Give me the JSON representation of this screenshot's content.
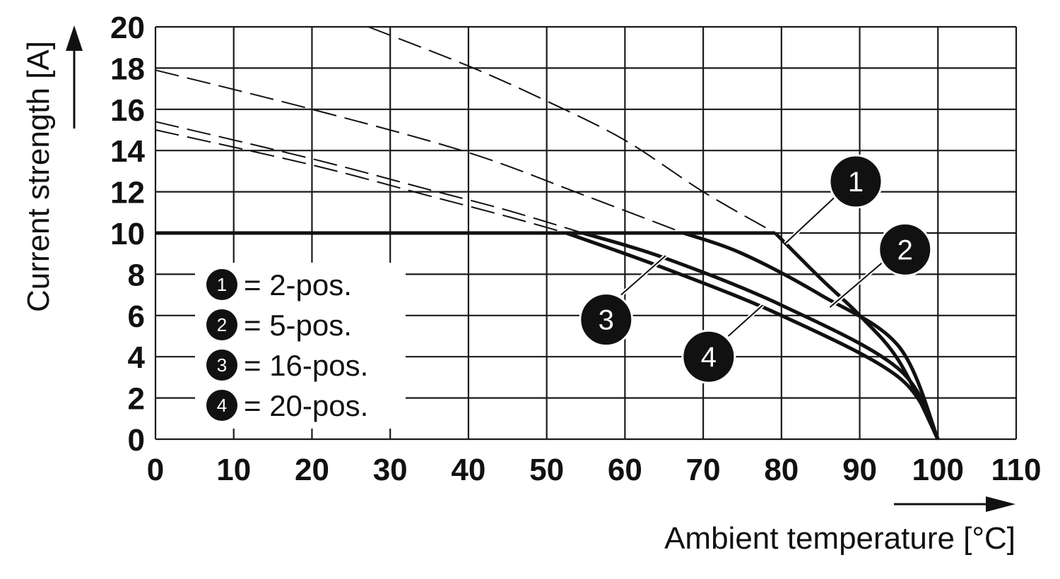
{
  "chart_data": {
    "type": "line",
    "xlabel": "Ambient temperature [°C]",
    "ylabel": "Current strength [A]",
    "xlim": [
      0,
      110
    ],
    "ylim": [
      0,
      20
    ],
    "x_ticks": [
      "0",
      "10",
      "20",
      "30",
      "40",
      "50",
      "60",
      "70",
      "80",
      "90",
      "100",
      "110"
    ],
    "y_ticks": [
      "0",
      "2",
      "4",
      "6",
      "8",
      "10",
      "12",
      "14",
      "16",
      "18",
      "20"
    ],
    "grid": true,
    "limit_line": {
      "y": 10
    },
    "legend": {
      "placement": "lower-left",
      "entries": [
        {
          "badge": "1",
          "label": "= 2-pos."
        },
        {
          "badge": "2",
          "label": "= 5-pos."
        },
        {
          "badge": "3",
          "label": "= 16-pos."
        },
        {
          "badge": "4",
          "label": "= 20-pos."
        }
      ]
    },
    "series": [
      {
        "badge": "1",
        "x": [
          27.2,
          40,
          50,
          60,
          70,
          79.2,
          85,
          90,
          95,
          100
        ],
        "y": [
          20,
          18.1,
          16.4,
          14.5,
          12.0,
          10.0,
          7.8,
          6.0,
          3.8,
          0
        ]
      },
      {
        "badge": "2",
        "x": [
          0,
          20,
          40,
          55,
          67.5,
          75,
          85,
          95,
          100
        ],
        "y": [
          17.9,
          16.0,
          13.9,
          11.8,
          10.0,
          9.0,
          7.0,
          4.5,
          0
        ]
      },
      {
        "badge": "3",
        "x": [
          0,
          20,
          35,
          45,
          54.6,
          65,
          80,
          95,
          100
        ],
        "y": [
          15.4,
          13.6,
          12.1,
          11.1,
          10.0,
          8.8,
          6.5,
          3.4,
          0
        ]
      },
      {
        "badge": "4",
        "x": [
          0,
          20,
          35,
          45,
          52.5,
          65,
          80,
          95,
          100
        ],
        "y": [
          15.0,
          13.3,
          11.8,
          10.8,
          10.0,
          8.3,
          6.0,
          3.0,
          0
        ]
      }
    ]
  }
}
